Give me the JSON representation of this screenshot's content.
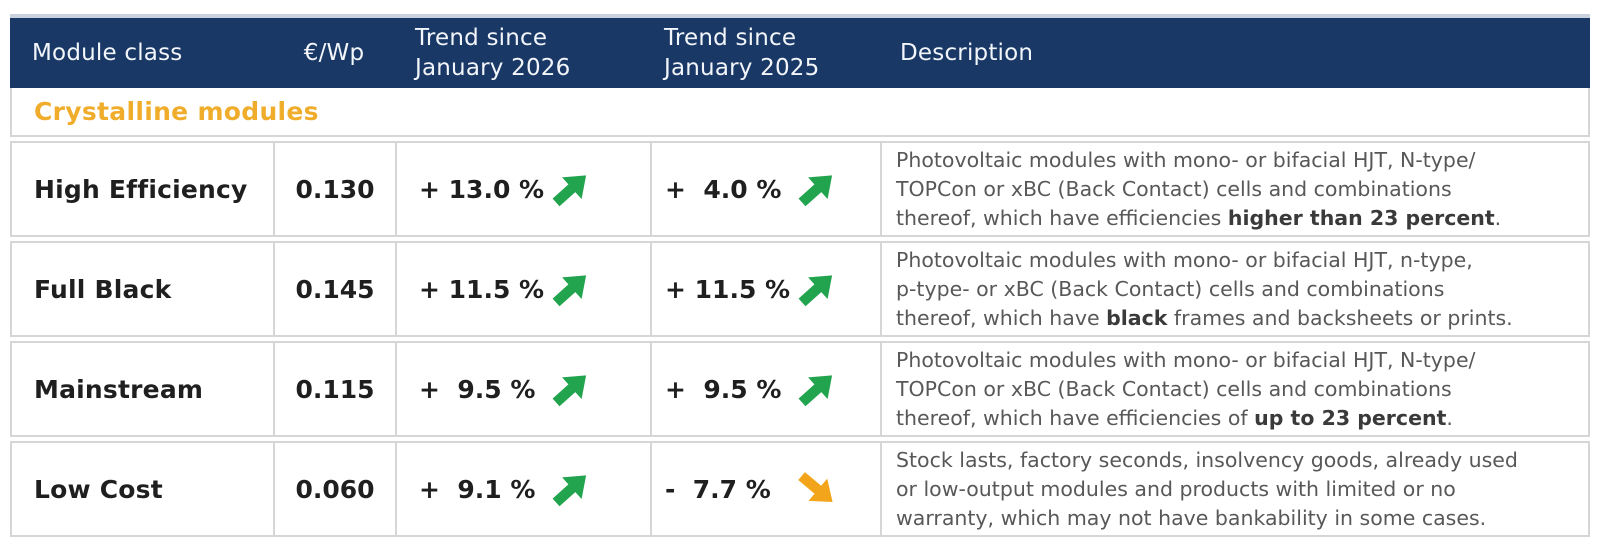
{
  "table": {
    "section_label": "Crystalline modules",
    "header_cells": [
      {
        "key": "module-class",
        "lines": [
          "Module class"
        ]
      },
      {
        "key": "price-eur-wp",
        "lines": [
          "€/Wp"
        ]
      },
      {
        "key": "trend-since-jan-2026",
        "lines": [
          "Trend since",
          "January 2026"
        ]
      },
      {
        "key": "trend-since-jan-2025",
        "lines": [
          "Trend since",
          "January 2025"
        ]
      },
      {
        "key": "description",
        "lines": [
          "Description"
        ]
      }
    ],
    "rows": [
      {
        "module_class": "High Efficiency",
        "price": "0.130",
        "trend_2026": {
          "text": "+ 13.0 %",
          "direction": "up"
        },
        "trend_2025": {
          "text": "+  4.0 %",
          "direction": "up"
        },
        "description_lines": [
          [
            {
              "t": "Photovoltaic modules with mono- or bifacial HJT, N-type/",
              "b": false
            }
          ],
          [
            {
              "t": "TOPCon or xBC (Back Contact) cells and combinations",
              "b": false
            }
          ],
          [
            {
              "t": "thereof, which have efficiencies ",
              "b": false
            },
            {
              "t": "higher than 23 percent",
              "b": true
            },
            {
              "t": ".",
              "b": false
            }
          ]
        ]
      },
      {
        "module_class": "Full Black",
        "price": "0.145",
        "trend_2026": {
          "text": "+ 11.5 %",
          "direction": "up"
        },
        "trend_2025": {
          "text": "+ 11.5 %",
          "direction": "up"
        },
        "description_lines": [
          [
            {
              "t": "Photovoltaic modules with mono- or bifacial HJT, n-type,",
              "b": false
            }
          ],
          [
            {
              "t": "p-type- or xBC (Back Contact) cells and combinations",
              "b": false
            }
          ],
          [
            {
              "t": "thereof, which have ",
              "b": false
            },
            {
              "t": "black",
              "b": true
            },
            {
              "t": " frames and backsheets or prints.",
              "b": false
            }
          ]
        ]
      },
      {
        "module_class": "Mainstream",
        "price": "0.115",
        "trend_2026": {
          "text": "+  9.5 %",
          "direction": "up"
        },
        "trend_2025": {
          "text": "+  9.5 %",
          "direction": "up"
        },
        "description_lines": [
          [
            {
              "t": "Photovoltaic modules with mono- or bifacial HJT, N-type/",
              "b": false
            }
          ],
          [
            {
              "t": "TOPCon or xBC (Back Contact) cells and combinations",
              "b": false
            }
          ],
          [
            {
              "t": "thereof, which have efficiencies of ",
              "b": false
            },
            {
              "t": "up to 23 percent",
              "b": true
            },
            {
              "t": ".",
              "b": false
            }
          ]
        ]
      },
      {
        "module_class": "Low Cost",
        "price": "0.060",
        "trend_2026": {
          "text": "+  9.1 %",
          "direction": "up"
        },
        "trend_2025": {
          "text": "-  7.7 %",
          "direction": "down"
        },
        "description_lines": [
          [
            {
              "t": "Stock lasts, factory seconds, insolvency goods, already used",
              "b": false
            }
          ],
          [
            {
              "t": "or low-output modules and products with limited or no",
              "b": false
            }
          ],
          [
            {
              "t": "warranty, which may not have bankability in some cases.",
              "b": false
            }
          ]
        ]
      }
    ],
    "colors": {
      "header_bg": "#1a3866",
      "header_band": "#c9d2de",
      "section_text": "#f0ad2b",
      "trend_up": "#22a34d",
      "trend_down": "#f2a51a",
      "border": "#d6d6d6"
    }
  },
  "chart_data": {
    "type": "table",
    "title": "",
    "columns": [
      "Module class",
      "€/Wp",
      "Trend since January 2026",
      "Trend since January 2025",
      "Description"
    ],
    "section": "Crystalline modules",
    "rows": [
      [
        "High Efficiency",
        0.13,
        "+13.0 %",
        "+4.0 %",
        "Photovoltaic modules with mono- or bifacial HJT, N-type/TOPCon or xBC (Back Contact) cells and combinations thereof, which have efficiencies higher than 23 percent."
      ],
      [
        "Full Black",
        0.145,
        "+11.5 %",
        "+11.5 %",
        "Photovoltaic modules with mono- or bifacial HJT, n-type, p-type- or xBC (Back Contact) cells and combinations thereof, which have black frames and backsheets or prints."
      ],
      [
        "Mainstream",
        0.115,
        "+9.5 %",
        "+9.5 %",
        "Photovoltaic modules with mono- or bifacial HJT, N-type/TOPCon or xBC (Back Contact) cells and combinations thereof, which have efficiencies of up to 23 percent."
      ],
      [
        "Low Cost",
        0.06,
        "+9.1 %",
        "-7.7 %",
        "Stock lasts, factory seconds, insolvency goods, already used or low-output modules and products with limited or no warranty, which may not have bankability in some cases."
      ]
    ]
  }
}
